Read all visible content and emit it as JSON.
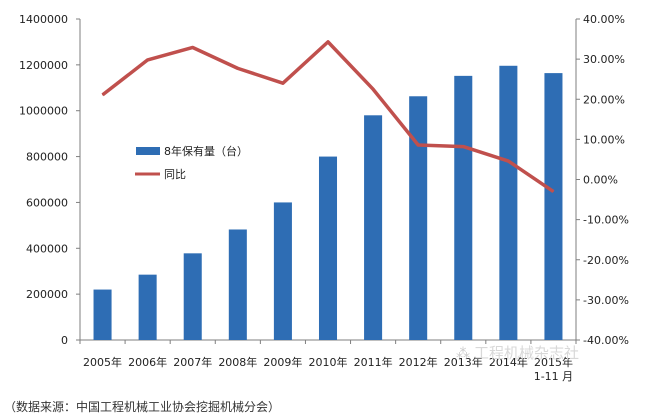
{
  "chart_data": {
    "type": "bar",
    "categories": [
      "2005年",
      "2006年",
      "2007年",
      "2008年",
      "2009年",
      "2010年",
      "2011年",
      "2012年",
      "2013年",
      "2014年",
      "2015年"
    ],
    "category_sublabels": [
      "",
      "",
      "",
      "",
      "",
      "",
      "",
      "",
      "",
      "",
      "1-11 月"
    ],
    "series": [
      {
        "name": "8年保有量（台）",
        "type": "bar",
        "axis": "left",
        "color": "#2e6db4",
        "values": [
          220000,
          285000,
          378000,
          482000,
          600000,
          800000,
          980000,
          1063000,
          1152000,
          1196000,
          1164000
        ]
      },
      {
        "name": "同比",
        "type": "line",
        "axis": "right",
        "color": "#c0504d",
        "values": [
          0.211,
          0.298,
          0.329,
          0.277,
          0.24,
          0.343,
          0.225,
          0.086,
          0.082,
          0.046,
          -0.03
        ]
      }
    ],
    "y_left": {
      "min": 0,
      "max": 1400000,
      "step": 200000,
      "ticks": [
        "0",
        "200000",
        "400000",
        "600000",
        "800000",
        "1000000",
        "1200000",
        "1400000"
      ]
    },
    "y_right": {
      "min": -0.4,
      "max": 0.4,
      "step": 0.1,
      "ticks": [
        "-40.00%",
        "-30.00%",
        "-20.00%",
        "-10.00%",
        "0.00%",
        "10.00%",
        "20.00%",
        "30.00%",
        "40.00%"
      ]
    },
    "legend": {
      "position": "center-left"
    },
    "grid": false
  },
  "watermark": "工程机械杂志社",
  "source_note": "（数据来源：中国工程机械工业协会挖掘机械分会）"
}
